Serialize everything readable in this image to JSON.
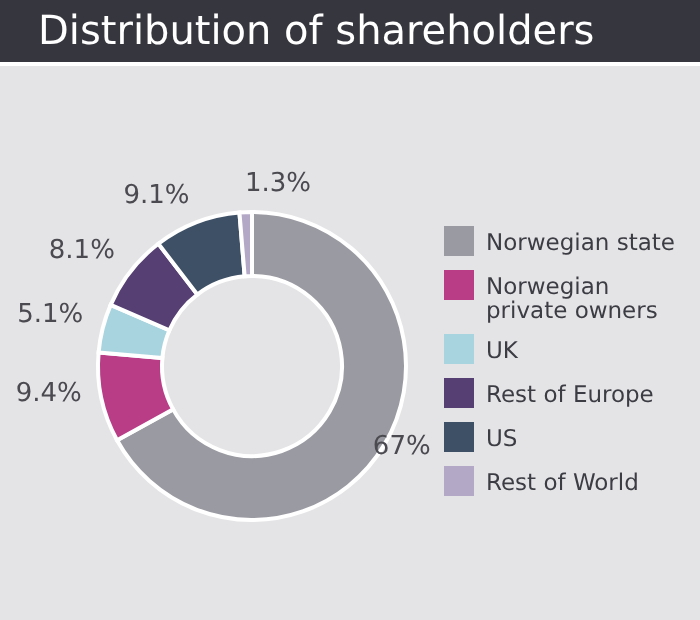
{
  "chart_data": {
    "type": "donut",
    "title": "Distribution of shareholders",
    "categories": [
      "Norwegian state",
      "Norwegian private owners",
      "UK",
      "Rest of Europe",
      "US",
      "Rest of World"
    ],
    "values": [
      67,
      9.4,
      5.1,
      8.1,
      9.1,
      1.3
    ],
    "colors": [
      "#9a9aa2",
      "#b83d86",
      "#a8d4df",
      "#563f73",
      "#3e5066",
      "#b3a8c6"
    ],
    "value_labels": [
      "67%",
      "9.4%",
      "5.1%",
      "8.1%",
      "9.1%",
      "1.3%"
    ],
    "legend": "right"
  }
}
